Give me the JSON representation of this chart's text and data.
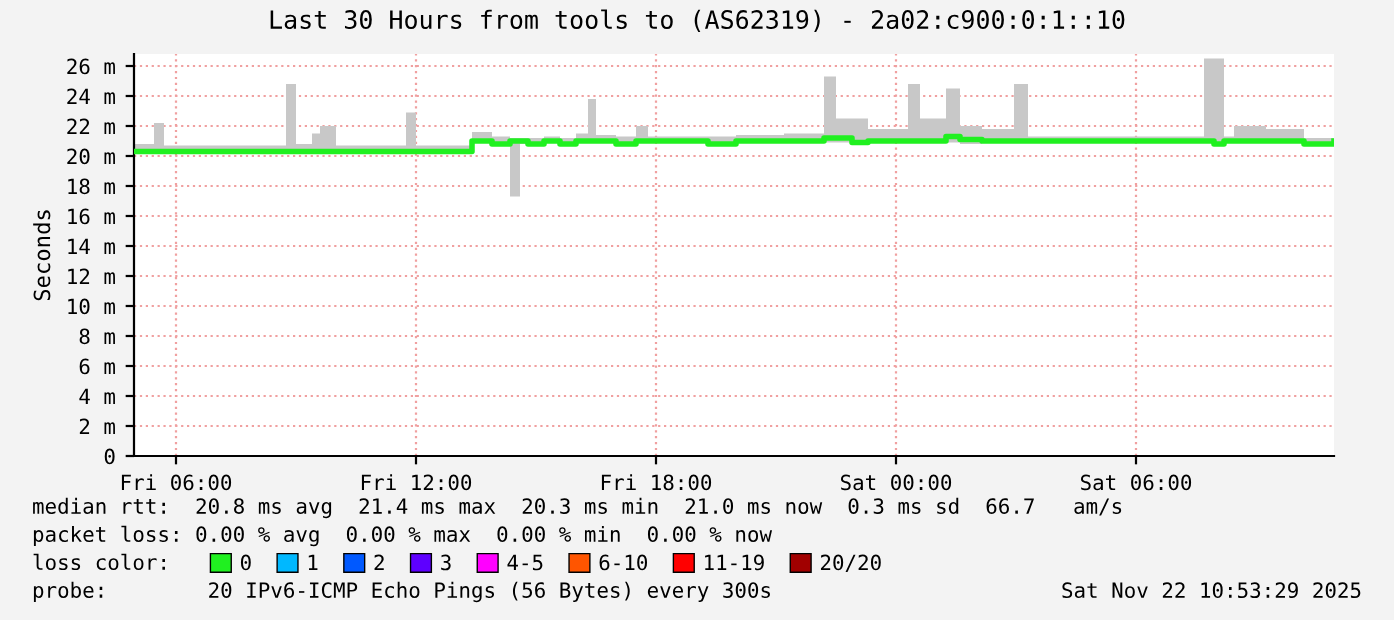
{
  "chart_data": {
    "type": "step",
    "title": "Last 30 Hours from tools to (AS62319) - 2a02:c900:0:1::10",
    "ylabel": "Seconds",
    "legend_title": "loss color:",
    "xlim": [
      "2025-11-21T04:57",
      "2025-11-22T10:57"
    ],
    "xticks": [
      {
        "value": "2025-11-21T06:00",
        "label": "Fri 06:00"
      },
      {
        "value": "2025-11-21T12:00",
        "label": "Fri 12:00"
      },
      {
        "value": "2025-11-21T18:00",
        "label": "Fri 18:00"
      },
      {
        "value": "2025-11-22T00:00",
        "label": "Sat 00:00"
      },
      {
        "value": "2025-11-22T06:00",
        "label": "Sat 06:00"
      }
    ],
    "ylim": [
      0,
      26.8
    ],
    "yticks": [
      0,
      {
        "value": 2,
        "label": "2 m"
      },
      {
        "value": 4,
        "label": "4 m"
      },
      {
        "value": 6,
        "label": "6 m"
      },
      {
        "value": 8,
        "label": "8 m"
      },
      {
        "value": 10,
        "label": "10 m"
      },
      {
        "value": 12,
        "label": "12 m"
      },
      {
        "value": 14,
        "label": "14 m"
      },
      {
        "value": 16,
        "label": "16 m"
      },
      {
        "value": 18,
        "label": "18 m"
      },
      {
        "value": 20,
        "label": "20 m"
      },
      {
        "value": 22,
        "label": "22 m"
      },
      {
        "value": 24,
        "label": "24 m"
      },
      {
        "value": 26,
        "label": "26 m"
      }
    ],
    "grid": true,
    "legend": "bottom",
    "series": [
      {
        "name": "0",
        "color": "#20f020",
        "x": [
          "2025-11-21T04:57",
          "2025-11-21T05:27",
          "2025-11-21T05:42",
          "2025-11-21T08:45",
          "2025-11-21T09:00",
          "2025-11-21T09:24",
          "2025-11-21T09:36",
          "2025-11-21T10:00",
          "2025-11-21T11:45",
          "2025-11-21T12:00",
          "2025-11-21T13:24",
          "2025-11-21T13:54",
          "2025-11-21T14:21",
          "2025-11-21T14:36",
          "2025-11-21T14:48",
          "2025-11-21T15:12",
          "2025-11-21T15:36",
          "2025-11-21T16:00",
          "2025-11-21T16:18",
          "2025-11-21T16:30",
          "2025-11-21T17:00",
          "2025-11-21T17:30",
          "2025-11-21T17:48",
          "2025-11-21T19:18",
          "2025-11-21T20:00",
          "2025-11-21T21:12",
          "2025-11-21T22:12",
          "2025-11-21T22:30",
          "2025-11-21T22:54",
          "2025-11-21T23:18",
          "2025-11-22T00:18",
          "2025-11-22T00:36",
          "2025-11-22T01:15",
          "2025-11-22T01:36",
          "2025-11-22T02:09",
          "2025-11-22T02:57",
          "2025-11-22T03:18",
          "2025-11-22T05:30",
          "2025-11-22T07:42",
          "2025-11-22T07:57",
          "2025-11-22T08:12",
          "2025-11-22T08:27",
          "2025-11-22T09:15",
          "2025-11-22T10:12",
          "2025-11-22T10:57"
        ],
        "values": [
          20.3,
          20.3,
          20.3,
          20.3,
          20.3,
          20.3,
          20.3,
          20.3,
          20.3,
          20.3,
          21.0,
          20.8,
          21.0,
          21.0,
          20.8,
          21.0,
          20.8,
          21.0,
          21.0,
          21.0,
          20.8,
          21.0,
          21.0,
          20.8,
          21.0,
          21.0,
          21.2,
          21.2,
          20.9,
          21.0,
          21.0,
          21.0,
          21.3,
          21.1,
          21.0,
          21.0,
          21.0,
          21.0,
          21.0,
          20.8,
          21.0,
          21.0,
          21.0,
          20.8,
          21.0
        ],
        "lower": [
          20.2,
          20.2,
          20.2,
          20.2,
          20.2,
          20.2,
          20.2,
          20.2,
          20.2,
          20.2,
          20.9,
          20.7,
          17.3,
          20.8,
          20.7,
          20.9,
          20.7,
          20.9,
          20.9,
          20.9,
          20.7,
          20.9,
          20.9,
          20.7,
          20.9,
          20.9,
          20.9,
          20.9,
          20.8,
          20.9,
          20.9,
          20.9,
          20.9,
          20.8,
          20.9,
          20.9,
          20.9,
          20.9,
          20.9,
          20.7,
          20.9,
          20.9,
          20.9,
          20.7,
          20.9
        ],
        "upper": [
          20.8,
          22.2,
          20.7,
          24.8,
          20.8,
          21.5,
          22.0,
          20.7,
          22.9,
          20.7,
          21.6,
          21.3,
          21.2,
          21.2,
          21.2,
          21.3,
          21.2,
          21.5,
          23.8,
          21.4,
          21.3,
          22.0,
          21.3,
          21.3,
          21.4,
          21.5,
          25.3,
          22.5,
          22.5,
          21.8,
          24.8,
          22.5,
          24.5,
          22.0,
          21.8,
          24.8,
          21.3,
          21.3,
          26.5,
          26.5,
          21.3,
          22.0,
          21.8,
          21.2,
          21.3
        ]
      },
      {
        "name": "1",
        "color": "#00b8ff"
      },
      {
        "name": "2",
        "color": "#0059ff"
      },
      {
        "name": "3",
        "color": "#5e00ff"
      },
      {
        "name": "4-5",
        "color": "#ff00ff"
      },
      {
        "name": "6-10",
        "color": "#ff5500"
      },
      {
        "name": "11-19",
        "color": "#ff0000"
      },
      {
        "name": "20/20",
        "color": "#a10000"
      }
    ],
    "annotations": [
      "median rtt:  20.8 ms avg  21.4 ms max  20.3 ms min  21.0 ms now  0.3 ms sd  66.7   am/s",
      "packet loss: 0.00 % avg  0.00 % max  0.00 % min  0.00 % now",
      "probe:        20 IPv6-ICMP Echo Pings (56 Bytes) every 300s",
      "Sat Nov 22 10:53:29 2025"
    ]
  }
}
